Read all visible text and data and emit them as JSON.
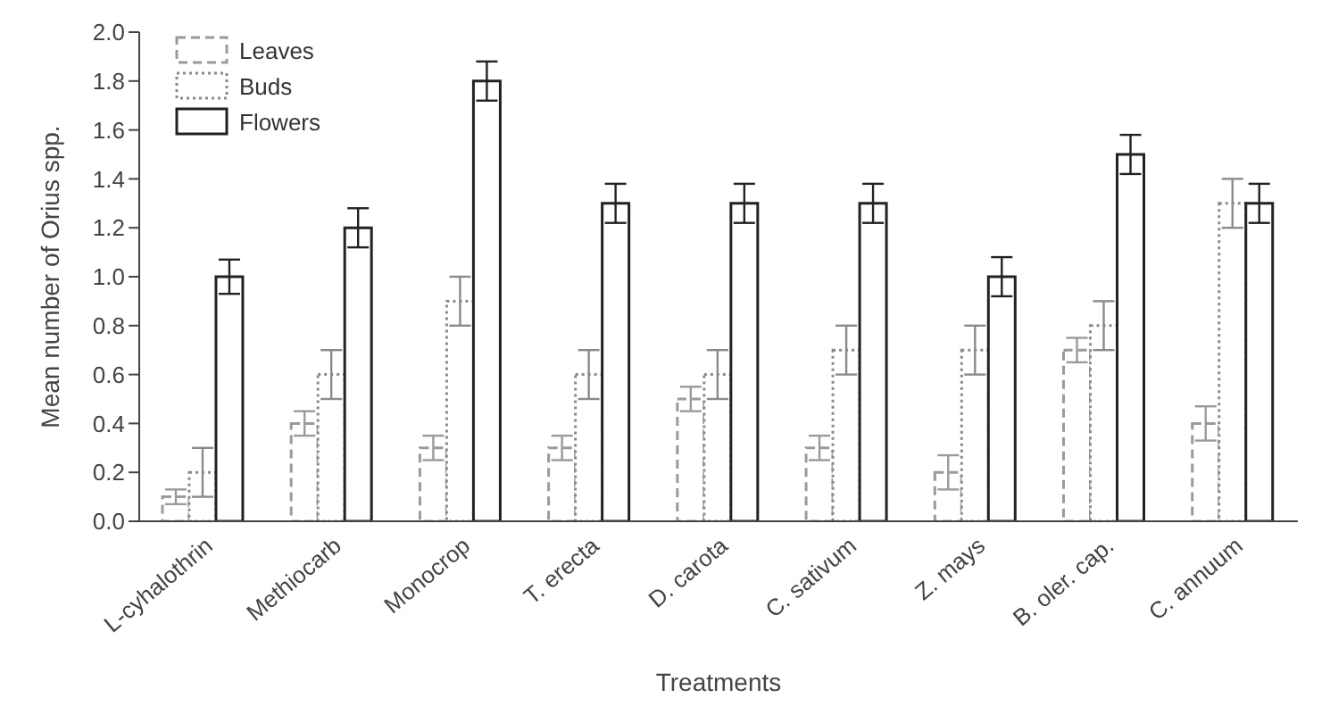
{
  "chart_data": {
    "type": "bar",
    "xlabel": "Treatments",
    "ylabel": "Mean number of Orius spp.",
    "categories": [
      "L-cyhalothrin",
      "Methiocarb",
      "Monocrop",
      "T. erecta",
      "D. carota",
      "C. sativum",
      "Z. mays",
      "B. oler. cap.",
      "C. annuum"
    ],
    "series": [
      {
        "name": "Leaves",
        "color": "#9a9a9a",
        "line_style": "dashed",
        "values": [
          0.1,
          0.4,
          0.3,
          0.3,
          0.5,
          0.3,
          0.2,
          0.7,
          0.4
        ],
        "errors": [
          0.03,
          0.05,
          0.05,
          0.05,
          0.05,
          0.05,
          0.07,
          0.05,
          0.07
        ]
      },
      {
        "name": "Buds",
        "color": "#8a8a8a",
        "line_style": "dotted",
        "values": [
          0.2,
          0.6,
          0.9,
          0.6,
          0.6,
          0.7,
          0.7,
          0.8,
          1.3
        ],
        "errors": [
          0.1,
          0.1,
          0.1,
          0.1,
          0.1,
          0.1,
          0.1,
          0.1,
          0.1
        ]
      },
      {
        "name": "Flowers",
        "color": "#222222",
        "line_style": "solid",
        "values": [
          1.0,
          1.2,
          1.8,
          1.3,
          1.3,
          1.3,
          1.0,
          1.5,
          1.3
        ],
        "errors": [
          0.07,
          0.08,
          0.08,
          0.08,
          0.08,
          0.08,
          0.08,
          0.08,
          0.08
        ]
      }
    ],
    "ylim": [
      0,
      2.0
    ],
    "yticks": [
      {
        "value": 0,
        "label": "0.0"
      },
      {
        "value": 0.2,
        "label": "0.2"
      },
      {
        "value": 0.4,
        "label": "0.4"
      },
      {
        "value": 0.6,
        "label": "0.6"
      },
      {
        "value": 0.8,
        "label": "0.8"
      },
      {
        "value": 1.0,
        "label": "1.0"
      },
      {
        "value": 1.2,
        "label": "1.2"
      },
      {
        "value": 1.4,
        "label": "1.4"
      },
      {
        "value": 1.6,
        "label": "1.6"
      },
      {
        "value": 1.8,
        "label": "1.8"
      },
      {
        "value": 2.0,
        "label": "2.0"
      }
    ],
    "grid": false,
    "legend": "top left"
  }
}
